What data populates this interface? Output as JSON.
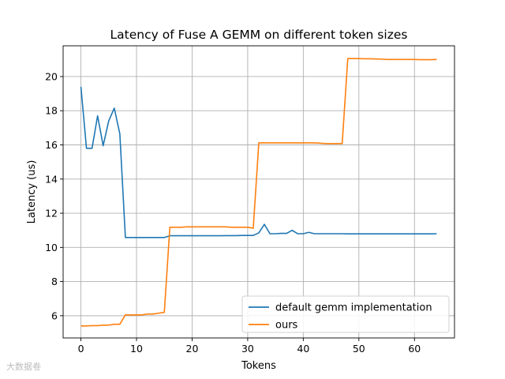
{
  "chart_data": {
    "type": "line",
    "title": "Latency of Fuse A GEMM on different token sizes",
    "xlabel": "Tokens",
    "ylabel": "Latency (us)",
    "xlim": [
      -3.2,
      67.2
    ],
    "ylim": [
      4.7,
      21.8
    ],
    "xticks": [
      0,
      10,
      20,
      30,
      40,
      50,
      60
    ],
    "yticks": [
      6,
      8,
      10,
      12,
      14,
      16,
      18,
      20
    ],
    "grid": true,
    "legend_position": "bottom-right",
    "series": [
      {
        "name": "default gemm implementation",
        "color": "#1f77b4",
        "x": [
          0,
          1,
          2,
          3,
          4,
          5,
          6,
          7,
          8,
          9,
          10,
          11,
          12,
          13,
          14,
          15,
          16,
          17,
          18,
          19,
          20,
          21,
          22,
          23,
          24,
          25,
          26,
          27,
          28,
          29,
          30,
          31,
          32,
          33,
          34,
          35,
          36,
          37,
          38,
          39,
          40,
          41,
          42,
          43,
          44,
          45,
          46,
          47,
          48,
          49,
          50,
          51,
          52,
          53,
          54,
          55,
          56,
          57,
          58,
          59,
          60,
          61,
          62,
          63,
          64
        ],
        "values": [
          19.4,
          15.8,
          15.8,
          17.7,
          15.95,
          17.4,
          18.15,
          16.65,
          10.58,
          10.58,
          10.58,
          10.58,
          10.58,
          10.58,
          10.58,
          10.58,
          10.68,
          10.68,
          10.68,
          10.68,
          10.68,
          10.68,
          10.68,
          10.68,
          10.68,
          10.68,
          10.69,
          10.69,
          10.69,
          10.7,
          10.7,
          10.7,
          10.85,
          11.35,
          10.8,
          10.8,
          10.82,
          10.82,
          11.0,
          10.8,
          10.8,
          10.88,
          10.8,
          10.8,
          10.8,
          10.8,
          10.8,
          10.8,
          10.79,
          10.79,
          10.79,
          10.79,
          10.79,
          10.79,
          10.79,
          10.79,
          10.79,
          10.79,
          10.79,
          10.79,
          10.79,
          10.79,
          10.79,
          10.79,
          10.8
        ]
      },
      {
        "name": "ours",
        "color": "#ff7f0e",
        "x": [
          0,
          1,
          2,
          3,
          4,
          5,
          6,
          7,
          8,
          9,
          10,
          11,
          12,
          13,
          14,
          15,
          16,
          17,
          18,
          19,
          20,
          21,
          22,
          23,
          24,
          25,
          26,
          27,
          28,
          29,
          30,
          31,
          32,
          33,
          34,
          35,
          36,
          37,
          38,
          39,
          40,
          41,
          42,
          43,
          44,
          45,
          46,
          47,
          48,
          49,
          50,
          51,
          52,
          53,
          54,
          55,
          56,
          57,
          58,
          59,
          60,
          61,
          62,
          63,
          64
        ],
        "values": [
          5.4,
          5.4,
          5.42,
          5.42,
          5.45,
          5.45,
          5.5,
          5.5,
          6.05,
          6.05,
          6.05,
          6.05,
          6.1,
          6.1,
          6.15,
          6.2,
          11.18,
          11.18,
          11.18,
          11.2,
          11.2,
          11.2,
          11.2,
          11.2,
          11.2,
          11.2,
          11.2,
          11.18,
          11.18,
          11.18,
          11.18,
          11.12,
          16.12,
          16.12,
          16.12,
          16.12,
          16.12,
          16.12,
          16.12,
          16.12,
          16.12,
          16.12,
          16.12,
          16.1,
          16.08,
          16.08,
          16.08,
          16.08,
          21.05,
          21.05,
          21.05,
          21.04,
          21.04,
          21.03,
          21.02,
          21.0,
          21.0,
          21.0,
          21.0,
          21.0,
          21.0,
          20.99,
          20.99,
          20.99,
          21.0
        ]
      }
    ]
  },
  "watermark": "大数据卷"
}
